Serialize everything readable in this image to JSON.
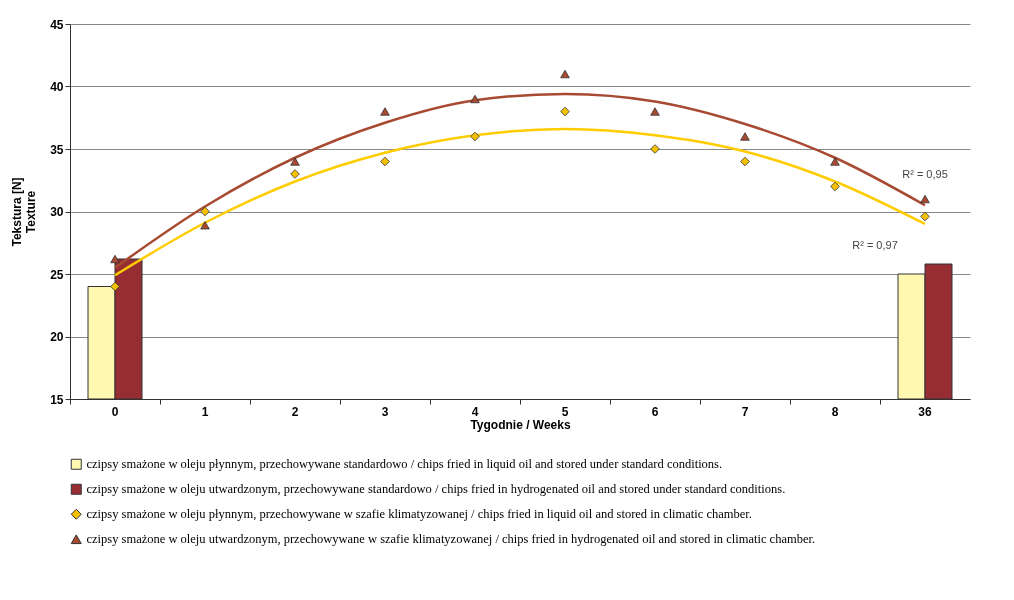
{
  "chart_data": {
    "type": "bar",
    "xlabel": "Tygodnie / Weeks",
    "ylabel": "Tekstura [N]\nTexture",
    "categories": [
      "0",
      "1",
      "2",
      "3",
      "4",
      "5",
      "6",
      "7",
      "8",
      "36"
    ],
    "ylim": [
      15,
      45
    ],
    "yticks": [
      15,
      20,
      25,
      30,
      35,
      40,
      45
    ],
    "grid": "y",
    "legend": "bottom",
    "series": [
      {
        "name": "czipsy smażone w oleju płynnym, przechowywane standardowo / chips fried in liquid oil and stored under standard conditions.",
        "color": "#fff8b0",
        "values": [
          24,
          null,
          null,
          null,
          null,
          null,
          null,
          null,
          null,
          25
        ]
      },
      {
        "name": "czipsy smażone w oleju utwardzonym, przechowywane standardowo / chips fried in hydrogenated oil and stored under standard conditions.",
        "color": "#962d32",
        "values": [
          26.2,
          null,
          null,
          null,
          null,
          null,
          null,
          null,
          null,
          25.8
        ]
      },
      {
        "name": "czipsy smażone w oleju płynnym, przechowywane w szafie klimatyzowanej / chips fried in liquid oil and stored in climatic chamber.",
        "type": "scatter",
        "marker": "diamond",
        "color": "#f5c000",
        "values": [
          24,
          30,
          33,
          34,
          36,
          38,
          35,
          34,
          32,
          29.6
        ]
      },
      {
        "name": "czipsy smażone w oleju utwardzonym, przechowywane w szafie klimatyzowanej / chips fried in hydrogenated oil and stored in climatic chamber.",
        "type": "scatter",
        "marker": "triangle",
        "color": "#a84a32",
        "values": [
          26.2,
          28.9,
          34,
          38,
          39,
          41,
          38,
          36,
          34,
          31
        ]
      },
      {
        "type": "line",
        "color": "#a84a32",
        "values": [
          25.5,
          30.4,
          34.3,
          37.1,
          38.9,
          39.4,
          38.8,
          37,
          34.3,
          30.5
        ]
      },
      {
        "type": "line",
        "color": "#ffcc00",
        "values": [
          24.9,
          29.1,
          32.4,
          34.7,
          36.1,
          36.6,
          36.1,
          34.8,
          32.4,
          29
        ]
      }
    ],
    "annotations": [
      "R² = 0,95",
      "R² = 0,97"
    ]
  }
}
